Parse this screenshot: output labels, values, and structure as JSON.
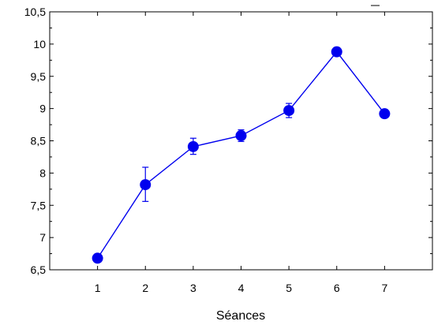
{
  "chart_data": {
    "type": "line",
    "title": "",
    "xlabel": "Séances",
    "ylabel": "",
    "x": [
      1,
      2,
      3,
      4,
      5,
      6,
      7
    ],
    "x_tick_labels": [
      "1",
      "2",
      "3",
      "4",
      "5",
      "6",
      "7"
    ],
    "xlim": [
      0,
      8
    ],
    "ylim": [
      6.5,
      10.5
    ],
    "y_ticks": [
      6.5,
      7,
      7.5,
      8,
      8.5,
      9,
      9.5,
      10,
      10.5
    ],
    "y_tick_labels": [
      "6,5",
      "7",
      "7,5",
      "8",
      "8,5",
      "9",
      "9,5",
      "10",
      "10,5"
    ],
    "grid": false,
    "series": [
      {
        "values": [
          6.68,
          7.82,
          8.41,
          8.58,
          8.97,
          9.88,
          8.92
        ],
        "error_low": [
          6.68,
          7.56,
          8.29,
          8.49,
          8.86,
          9.88,
          8.92
        ],
        "error_high": [
          6.68,
          8.09,
          8.54,
          8.67,
          9.08,
          9.88,
          8.92
        ],
        "color": "#0000ee"
      }
    ]
  }
}
